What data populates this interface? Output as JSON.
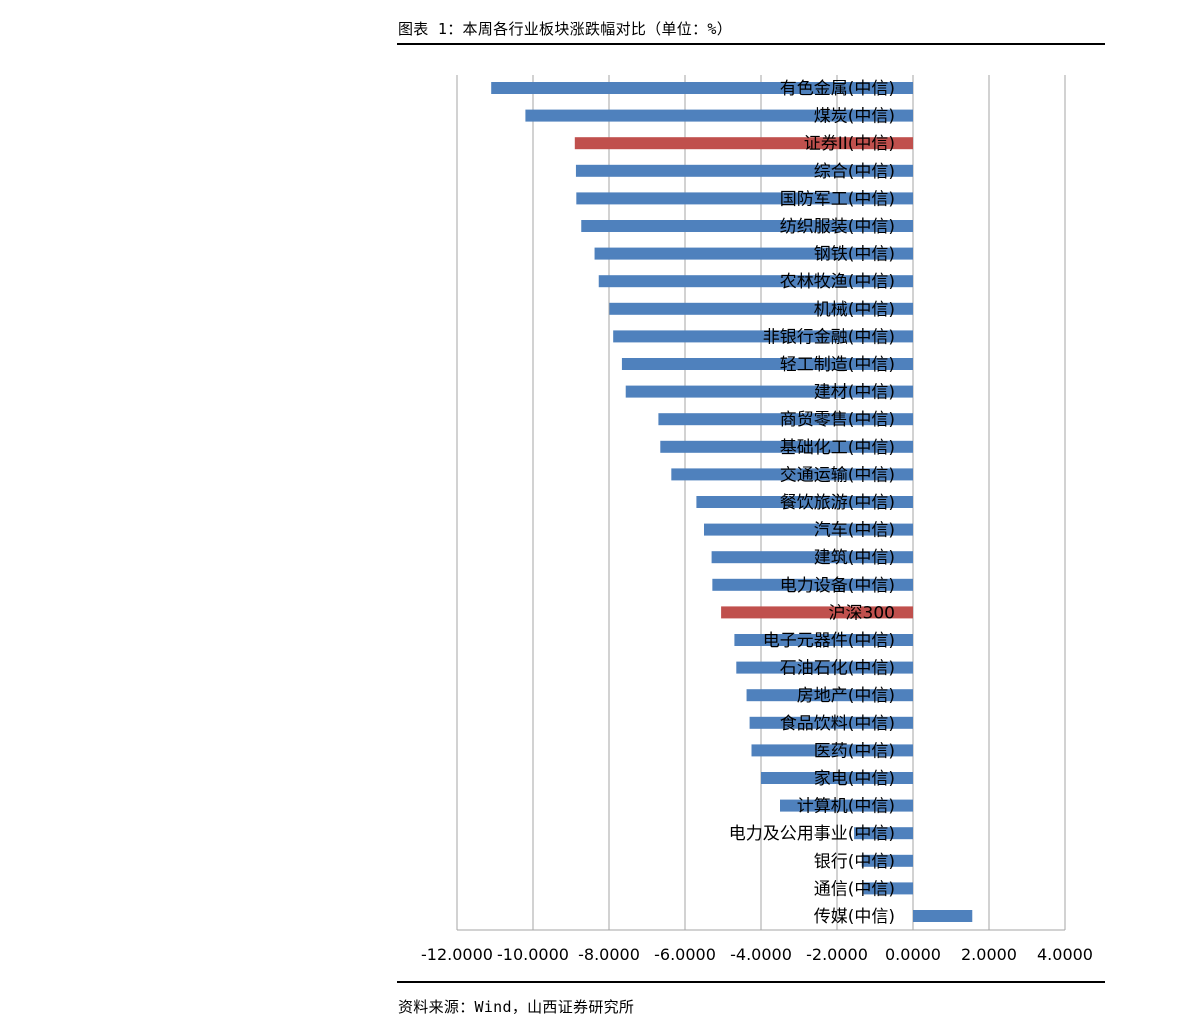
{
  "page": {
    "top_fragment": "",
    "caption": "图表 1：本周各行业板块涨跌幅对比（单位：%）",
    "source": "资料来源：Wind，山西证券研究所"
  },
  "colors": {
    "bar": "#4f81bd",
    "highlight": "#c0504d",
    "grid": "#a6a6a6"
  },
  "chart_data": {
    "type": "bar",
    "orientation": "horizontal",
    "title": "",
    "xlabel": "",
    "ylabel": "",
    "xlim": [
      -12,
      4
    ],
    "xticks": [
      "-12.0000",
      "-10.0000",
      "-8.0000",
      "-6.0000",
      "-4.0000",
      "-2.0000",
      "0.0000",
      "2.0000",
      "4.0000"
    ],
    "grid": "vertical",
    "categories": [
      "有色金属(中信)",
      "煤炭(中信)",
      "证券II(中信)",
      "综合(中信)",
      "国防军工(中信)",
      "纺织服装(中信)",
      "钢铁(中信)",
      "农林牧渔(中信)",
      "机械(中信)",
      "非银行金融(中信)",
      "轻工制造(中信)",
      "建材(中信)",
      "商贸零售(中信)",
      "基础化工(中信)",
      "交通运输(中信)",
      "餐饮旅游(中信)",
      "汽车(中信)",
      "建筑(中信)",
      "电力设备(中信)",
      "沪深300",
      "电子元器件(中信)",
      "石油石化(中信)",
      "房地产(中信)",
      "食品饮料(中信)",
      "医药(中信)",
      "家电(中信)",
      "计算机(中信)",
      "电力及公用事业(中信)",
      "银行(中信)",
      "通信(中信)",
      "传媒(中信)"
    ],
    "values": [
      -11.1,
      -10.2,
      -8.9,
      -8.87,
      -8.86,
      -8.73,
      -8.38,
      -8.27,
      -7.99,
      -7.89,
      -7.66,
      -7.56,
      -6.7,
      -6.65,
      -6.36,
      -5.7,
      -5.5,
      -5.3,
      -5.28,
      -5.05,
      -4.7,
      -4.65,
      -4.38,
      -4.3,
      -4.25,
      -4.0,
      -3.5,
      -1.55,
      -1.35,
      -1.3,
      1.56
    ],
    "highlighted": [
      "证券II(中信)",
      "沪深300"
    ]
  }
}
